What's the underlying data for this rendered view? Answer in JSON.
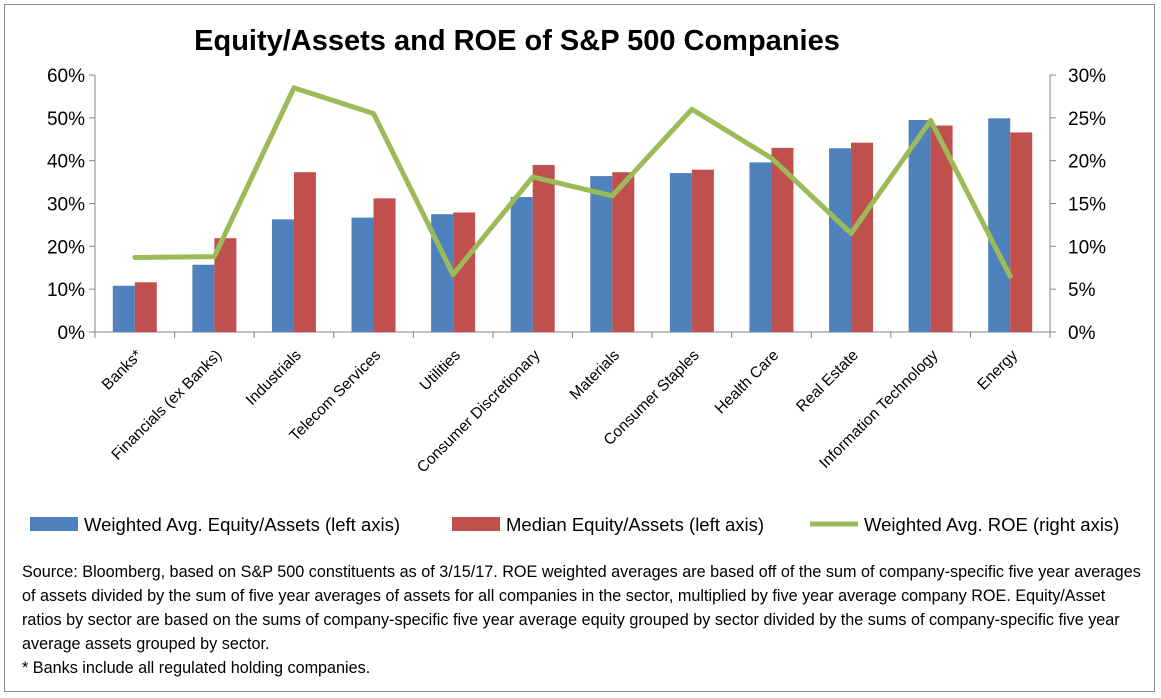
{
  "chart_data": {
    "type": "bar",
    "title": "Equity/Assets and ROE of S&P 500 Companies",
    "categories": [
      "Banks*",
      "Financials (ex Banks)",
      "Industrials",
      "Telecom Services",
      "Utilities",
      "Consumer Discretionary",
      "Materials",
      "Consumer Staples",
      "Health Care",
      "Real Estate",
      "Information Technology",
      "Energy"
    ],
    "series": [
      {
        "name": "Weighted Avg. Equity/Assets (left axis)",
        "kind": "bar",
        "axis": "left",
        "color": "#4f81bd",
        "values": [
          10.8,
          15.7,
          26.3,
          26.7,
          27.5,
          31.5,
          36.4,
          37.1,
          39.6,
          42.9,
          49.5,
          49.9
        ]
      },
      {
        "name": "Median Equity/Assets (left axis)",
        "kind": "bar",
        "axis": "left",
        "color": "#c0504d",
        "values": [
          11.6,
          21.9,
          37.3,
          31.2,
          27.9,
          39.0,
          37.3,
          37.9,
          43.0,
          44.2,
          48.2,
          46.6
        ]
      },
      {
        "name": "Weighted Avg. ROE (right axis)",
        "kind": "line",
        "axis": "right",
        "color": "#9bbb59",
        "values": [
          8.7,
          8.8,
          28.5,
          25.5,
          6.7,
          18.1,
          15.9,
          26.0,
          20.3,
          11.5,
          24.7,
          6.5
        ]
      }
    ],
    "y_left": {
      "min": 0,
      "max": 60,
      "step": 10,
      "ticks": [
        "0%",
        "10%",
        "20%",
        "30%",
        "40%",
        "50%",
        "60%"
      ]
    },
    "y_right": {
      "min": 0,
      "max": 30,
      "step": 5,
      "ticks": [
        "0%",
        "5%",
        "10%",
        "15%",
        "20%",
        "25%",
        "30%"
      ]
    },
    "grid": false,
    "legend_position": "bottom"
  },
  "note": {
    "source": "Source: Bloomberg, based on S&P 500 constituents as of 3/15/17. ROE weighted averages are based off of the sum of company-specific five year averages of assets divided by the sum of  five year averages of assets for all companies in the sector, multiplied by five year average company ROE. Equity/Asset ratios by sector are based on the sums of company-specific five year average equity grouped by sector divided by the sums of company-specific five year average assets  grouped by sector.",
    "footnote": "* Banks include all regulated holding companies."
  }
}
